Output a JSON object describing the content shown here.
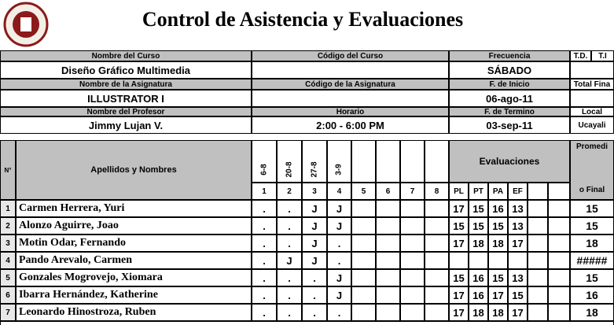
{
  "header": {
    "title": "Control de Asistencia y Evaluaciones"
  },
  "info": {
    "course_label": "Nombre del Curso",
    "course": "Diseño Gráfico Multimedia",
    "code_label": "Código del Curso",
    "frequency_label": "Frecuencia",
    "frequency": "SÁBADO",
    "td_label": "T.D.",
    "ti_label": "T.I",
    "subject_label": "Nombre de la Asignatura",
    "subject": "ILLUSTRATOR I",
    "subject_code_label": "Código de la Asignatura",
    "start_label": "F. de Inicio",
    "start": "06-ago-11",
    "total_label": "Total Fina",
    "teacher_label": "Nombre del Profesor",
    "teacher": "Jimmy Lujan V.",
    "schedule_label": "Horario",
    "schedule": "2:00 - 6:00 PM",
    "end_label": "F. de Termino",
    "end": "03-sep-11",
    "local_label": "Local",
    "local": "Ucayali"
  },
  "table": {
    "number_label": "N°",
    "name_label": "Apellidos y Nombres",
    "dates": [
      "6-8",
      "20-8",
      "27-8",
      "3-9"
    ],
    "sessions": [
      1,
      2,
      3,
      4,
      5,
      6,
      7,
      8
    ],
    "evaluations_label": "Evaluaciones",
    "evaluation_columns": [
      "PL",
      "PT",
      "PA",
      "EF"
    ],
    "average_label_1": "Promedi",
    "average_label_2": "o Final",
    "rows": [
      {
        "number": 1,
        "name": "Carmen Herrera, Yuri",
        "attendance": [
          ".",
          ".",
          "J",
          "J"
        ],
        "evaluations": [
          17,
          15,
          16,
          13
        ],
        "average": 15
      },
      {
        "number": 2,
        "name": "Alonzo Aguirre, Joao",
        "attendance": [
          ".",
          ".",
          "J",
          "J"
        ],
        "evaluations": [
          15,
          15,
          15,
          13
        ],
        "average": 15
      },
      {
        "number": 3,
        "name": "Motin Odar, Fernando",
        "attendance": [
          ".",
          ".",
          "J",
          "."
        ],
        "evaluations": [
          17,
          18,
          18,
          17
        ],
        "average": 18
      },
      {
        "number": 4,
        "name": "Pando Arevalo, Carmen",
        "attendance": [
          ".",
          "J",
          "J",
          "."
        ],
        "evaluations": [],
        "average": "#####"
      },
      {
        "number": 5,
        "name": "Gonzales Mogrovejo, Xiomara",
        "attendance": [
          ".",
          ".",
          ".",
          "J"
        ],
        "evaluations": [
          15,
          16,
          15,
          13
        ],
        "average": 15
      },
      {
        "number": 6,
        "name": "Ibarra Hernández, Katherine",
        "attendance": [
          ".",
          ".",
          ".",
          "J"
        ],
        "evaluations": [
          17,
          16,
          17,
          15
        ],
        "average": 16
      },
      {
        "number": 7,
        "name": "Leonardo Hinostroza, Ruben",
        "attendance": [
          ".",
          ".",
          ".",
          "."
        ],
        "evaluations": [
          17,
          18,
          18,
          17
        ],
        "average": 18
      }
    ]
  }
}
